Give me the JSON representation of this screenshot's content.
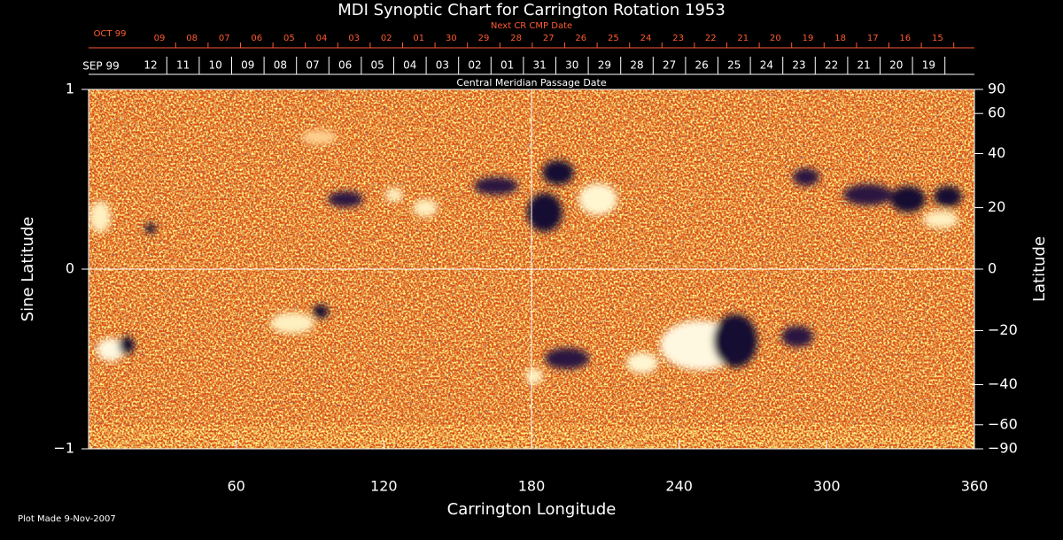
{
  "chart_data": {
    "type": "image",
    "title": "MDI Synoptic Chart for Carrington Rotation 1953",
    "next_cr_label": "Next CR CMP Date",
    "next_cr_dates": {
      "start": "OCT 99",
      "labels": [
        "09",
        "08",
        "07",
        "06",
        "05",
        "04",
        "03",
        "02",
        "01",
        "30",
        "29",
        "28",
        "27",
        "26",
        "25",
        "24",
        "23",
        "22",
        "21",
        "20",
        "19",
        "18",
        "17",
        "16",
        "15"
      ]
    },
    "cmp_label": "Central Meridian Passage Date",
    "cmp_dates": {
      "start": "SEP 99",
      "labels": [
        "12",
        "11",
        "10",
        "09",
        "08",
        "07",
        "06",
        "05",
        "04",
        "03",
        "02",
        "01",
        "31",
        "30",
        "29",
        "28",
        "27",
        "26",
        "25",
        "24",
        "23",
        "22",
        "21",
        "20",
        "19"
      ]
    },
    "x_label": "Carrington Longitude",
    "y_label": "Sine Latitude",
    "y2_label": "Latitude",
    "xlim": [
      0,
      360
    ],
    "xticks": [
      60,
      120,
      180,
      240,
      300,
      360
    ],
    "ylim": [
      -1,
      1
    ],
    "yticks": [
      {
        "value": -1,
        "label": "−1"
      },
      0,
      1
    ],
    "y2lim": [
      -90,
      90
    ],
    "y2scale": "sine",
    "y2ticks": [
      90,
      60,
      40,
      20,
      0,
      {
        "value": -20,
        "label": "−20"
      },
      {
        "value": -40,
        "label": "−40"
      },
      {
        "value": -60,
        "label": "−60"
      },
      {
        "value": -90,
        "label": "−90"
      }
    ],
    "guide_lines": {
      "x": 180,
      "y": 0
    },
    "footer": "Plot Made  9-Nov-2007"
  }
}
